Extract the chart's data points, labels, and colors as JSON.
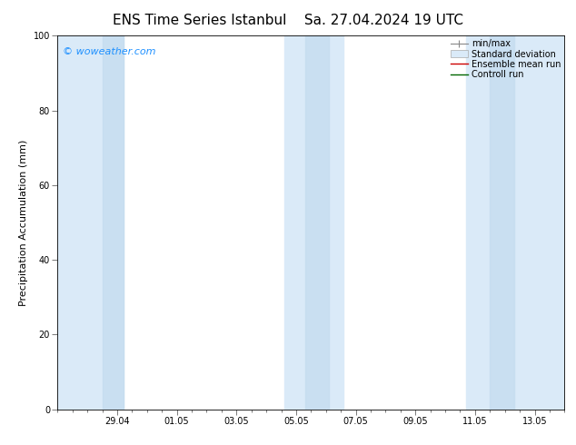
{
  "title_left": "ENS Time Series Istanbul",
  "title_right": "Sa. 27.04.2024 19 UTC",
  "ylabel": "Precipitation Accumulation (mm)",
  "ylim": [
    0,
    100
  ],
  "background_color": "#ffffff",
  "plot_bg_color": "#ffffff",
  "watermark": "© woweather.com",
  "watermark_color": "#1e90ff",
  "x_tick_labels": [
    "29.04",
    "01.05",
    "03.05",
    "05.05",
    "07.05",
    "09.05",
    "11.05",
    "13.05"
  ],
  "y_tick_labels": [
    "0",
    "20",
    "40",
    "60",
    "80",
    "100"
  ],
  "y_tick_values": [
    0,
    20,
    40,
    60,
    80,
    100
  ],
  "band_color": "#daeaf8",
  "band_color2": "#c5ddf0",
  "title_fontsize": 11,
  "tick_fontsize": 7,
  "ylabel_fontsize": 8,
  "watermark_fontsize": 8,
  "legend_fontsize": 7
}
